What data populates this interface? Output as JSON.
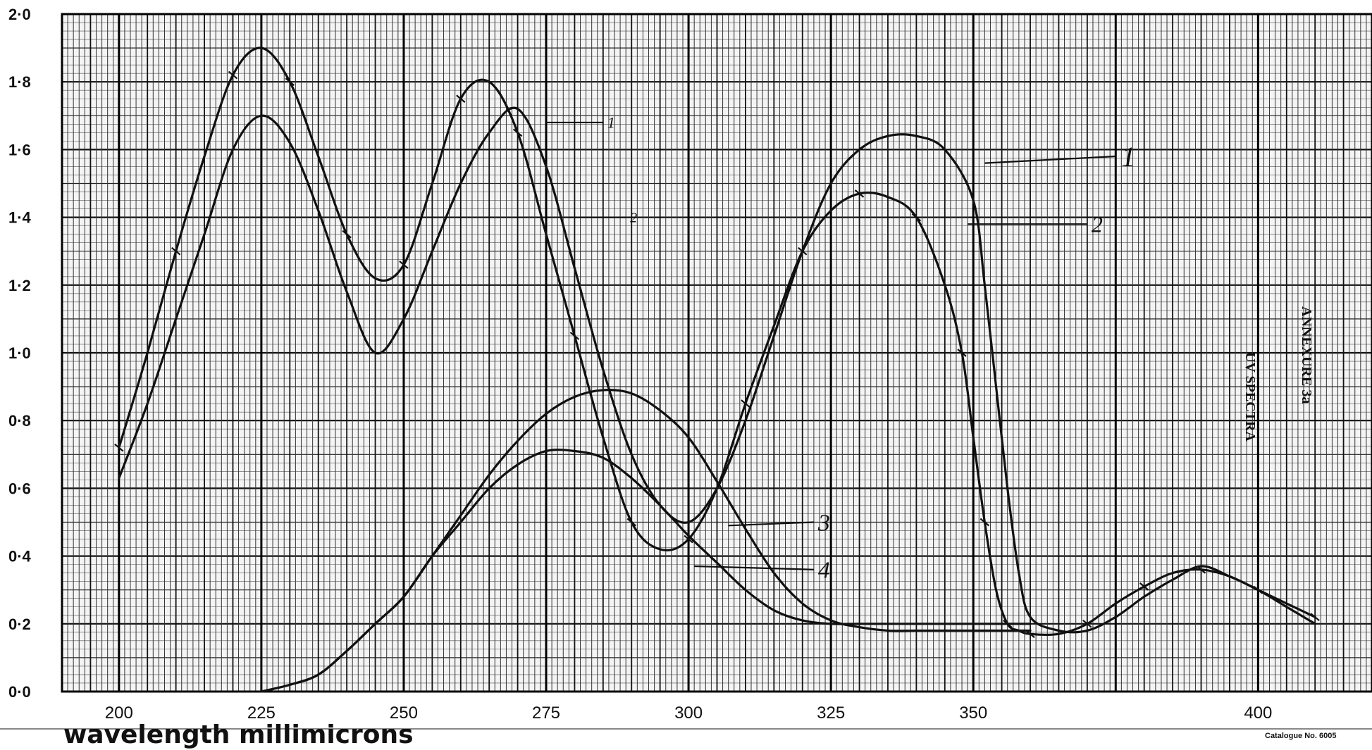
{
  "chart_data": {
    "type": "line",
    "xlabel": "wavelength millimicrons",
    "ylabel": "",
    "xlim": [
      190,
      420
    ],
    "ylim": [
      0.0,
      2.0
    ],
    "x_ticks": [
      "200",
      "225",
      "250",
      "275",
      "300",
      "325",
      "350",
      "400"
    ],
    "y_ticks": [
      "0·0",
      "0·2",
      "0·4",
      "0·6",
      "0·8",
      "1·0",
      "1·2",
      "1·4",
      "1·6",
      "1·8",
      "2·0"
    ],
    "grid": true,
    "annotations": [
      "UV SPECTRA",
      "ANNEXURE 3a",
      "Catalogue No. 6005"
    ],
    "series": [
      {
        "name": "1",
        "markers": false,
        "x": [
          200,
          205,
          210,
          215,
          220,
          225,
          230,
          235,
          240,
          245,
          250,
          255,
          260,
          265,
          270,
          275,
          280,
          285,
          290,
          295,
          300,
          305,
          310,
          315,
          320,
          325,
          330,
          335,
          340,
          345,
          350,
          352,
          354,
          356,
          358,
          360,
          365,
          370,
          375,
          380,
          385,
          390,
          395,
          400,
          405,
          410
        ],
        "y": [
          0.63,
          0.85,
          1.1,
          1.35,
          1.6,
          1.7,
          1.62,
          1.42,
          1.18,
          1.0,
          1.1,
          1.3,
          1.5,
          1.65,
          1.72,
          1.55,
          1.25,
          0.95,
          0.7,
          0.55,
          0.5,
          0.6,
          0.8,
          1.05,
          1.3,
          1.5,
          1.6,
          1.64,
          1.64,
          1.6,
          1.45,
          1.2,
          0.9,
          0.6,
          0.35,
          0.22,
          0.18,
          0.18,
          0.22,
          0.28,
          0.33,
          0.37,
          0.34,
          0.3,
          0.25,
          0.2
        ]
      },
      {
        "name": "2",
        "markers": true,
        "x": [
          200,
          205,
          210,
          215,
          220,
          225,
          230,
          235,
          240,
          245,
          250,
          255,
          260,
          265,
          270,
          275,
          280,
          285,
          290,
          295,
          300,
          305,
          310,
          315,
          320,
          325,
          330,
          335,
          340,
          345,
          348,
          350,
          352,
          354,
          356,
          358,
          360,
          365,
          370,
          375,
          380,
          385,
          390,
          395,
          400,
          405,
          410
        ],
        "y": [
          0.72,
          1.0,
          1.3,
          1.58,
          1.82,
          1.9,
          1.8,
          1.58,
          1.35,
          1.22,
          1.26,
          1.5,
          1.75,
          1.8,
          1.65,
          1.35,
          1.05,
          0.75,
          0.5,
          0.42,
          0.45,
          0.6,
          0.85,
          1.08,
          1.3,
          1.42,
          1.47,
          1.46,
          1.4,
          1.2,
          1.0,
          0.75,
          0.5,
          0.3,
          0.2,
          0.18,
          0.17,
          0.17,
          0.2,
          0.26,
          0.31,
          0.35,
          0.36,
          0.34,
          0.3,
          0.26,
          0.22
        ]
      },
      {
        "name": "3",
        "markers": false,
        "x": [
          225,
          230,
          235,
          240,
          245,
          250,
          255,
          260,
          265,
          270,
          275,
          280,
          285,
          290,
          295,
          300,
          305,
          310,
          315,
          320,
          325,
          330,
          335,
          340,
          345,
          350,
          355,
          360
        ],
        "y": [
          0.0,
          0.02,
          0.05,
          0.12,
          0.2,
          0.28,
          0.4,
          0.52,
          0.64,
          0.74,
          0.82,
          0.87,
          0.89,
          0.88,
          0.83,
          0.75,
          0.62,
          0.48,
          0.35,
          0.26,
          0.21,
          0.19,
          0.18,
          0.18,
          0.18,
          0.18,
          0.18,
          0.18
        ]
      },
      {
        "name": "4",
        "markers": false,
        "x": [
          225,
          230,
          235,
          240,
          245,
          250,
          255,
          260,
          265,
          270,
          275,
          280,
          285,
          290,
          295,
          300,
          305,
          310,
          315,
          320,
          325,
          330,
          335,
          340,
          345,
          350,
          355,
          360
        ],
        "y": [
          0.0,
          0.02,
          0.05,
          0.12,
          0.2,
          0.28,
          0.4,
          0.5,
          0.6,
          0.67,
          0.71,
          0.71,
          0.69,
          0.63,
          0.55,
          0.46,
          0.38,
          0.3,
          0.24,
          0.21,
          0.2,
          0.2,
          0.2,
          0.2,
          0.2,
          0.2,
          0.2,
          0.2
        ]
      }
    ]
  }
}
